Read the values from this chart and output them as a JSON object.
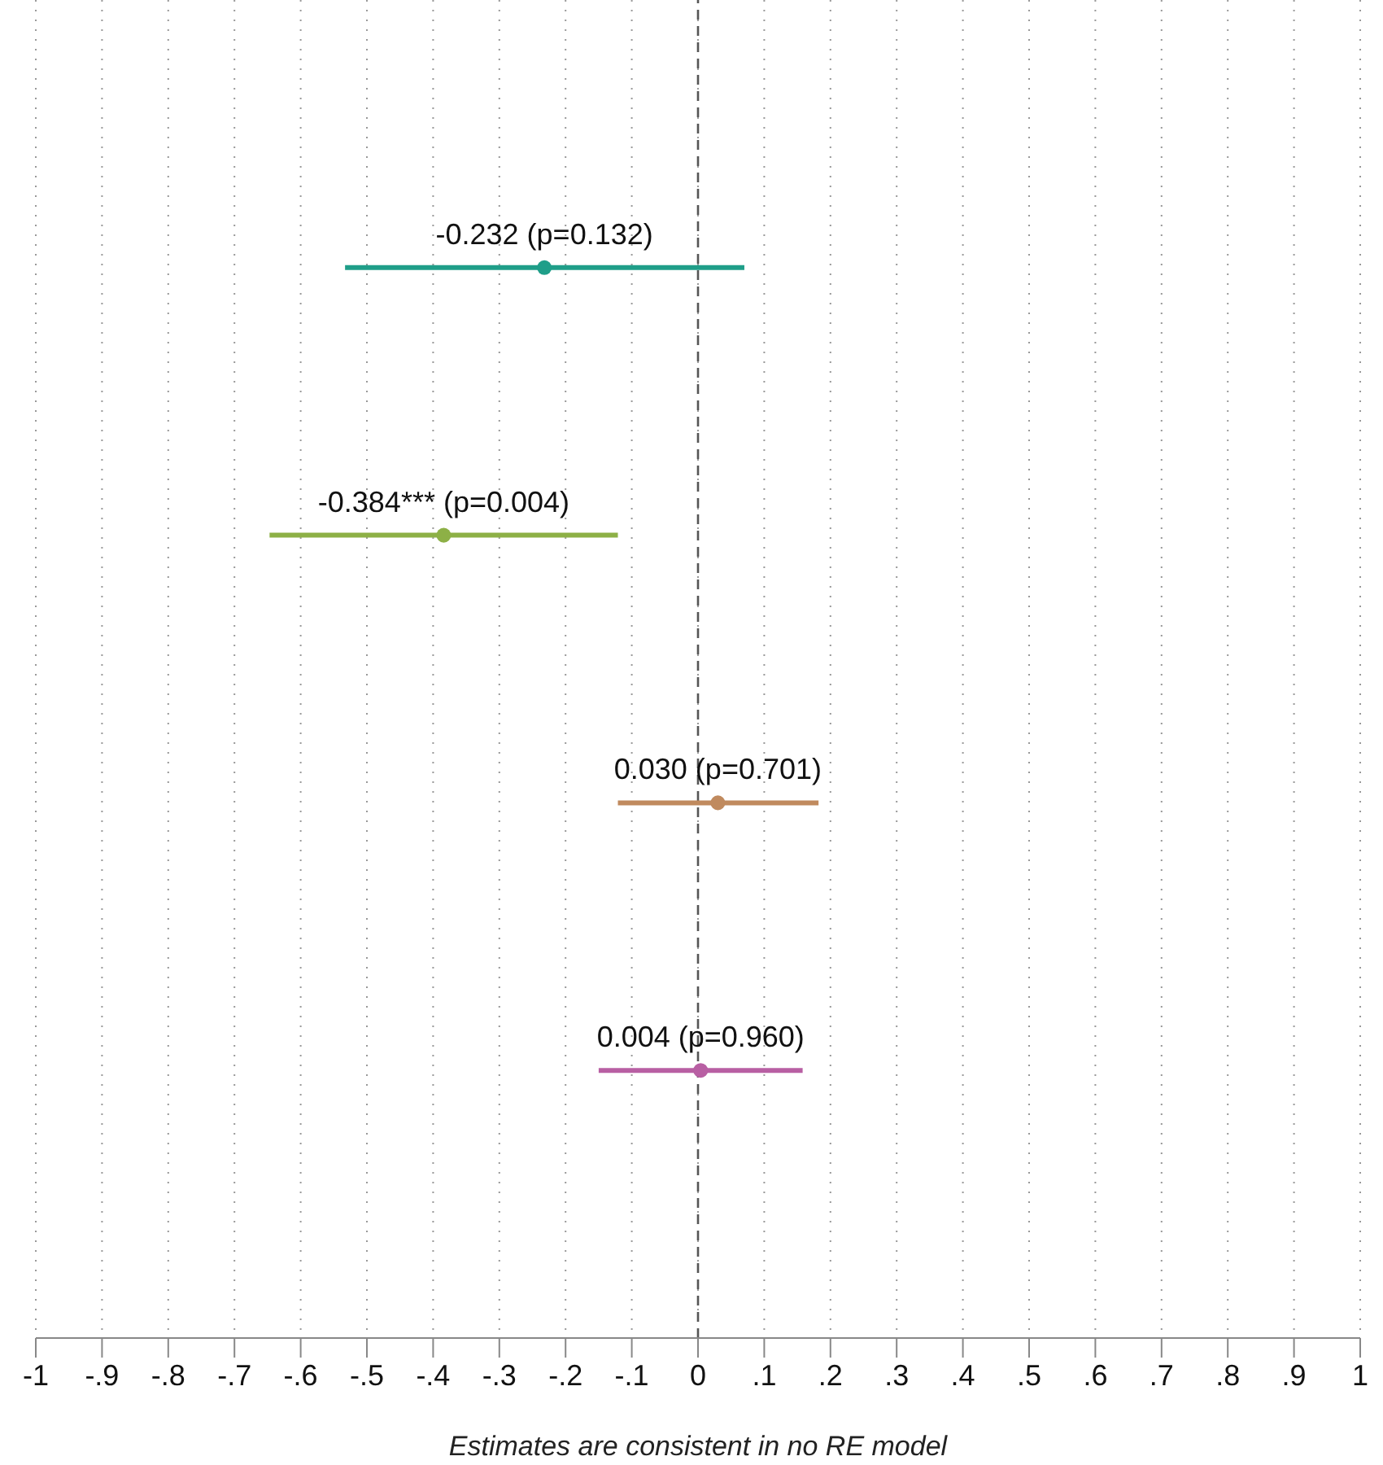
{
  "chart_data": {
    "type": "scatter",
    "orientation": "horizontal",
    "xlabel": "Estimates are consistent in no RE model",
    "categories": [
      null,
      null,
      null,
      null
    ],
    "series": [
      {
        "color": "#1f9e89",
        "values": [
          -0.232,
          null,
          null,
          null
        ],
        "errors": [
          [
            -0.533,
            0.07
          ],
          null,
          null,
          null
        ],
        "value_labels": [
          "-0.232 (p=0.132)",
          null,
          null,
          null
        ]
      },
      {
        "color": "#8db046",
        "values": [
          null,
          -0.384,
          null,
          null
        ],
        "errors": [
          null,
          [
            -0.647,
            -0.121
          ],
          null,
          null
        ],
        "value_labels": [
          null,
          "-0.384*** (p=0.004)",
          null,
          null
        ]
      },
      {
        "color": "#c08a5e",
        "values": [
          null,
          null,
          0.03,
          null
        ],
        "errors": [
          null,
          null,
          [
            -0.121,
            0.182
          ],
          null
        ],
        "value_labels": [
          null,
          null,
          "0.030 (p=0.701)",
          null
        ]
      },
      {
        "color": "#b85fa3",
        "values": [
          null,
          null,
          null,
          0.004
        ],
        "errors": [
          null,
          null,
          null,
          [
            -0.15,
            0.158
          ]
        ],
        "value_labels": [
          null,
          null,
          null,
          "0.004 (p=0.960)"
        ]
      }
    ],
    "xlim": [
      -1,
      1
    ],
    "xticks": [
      -1,
      {
        "value": -0.9,
        "label": "-.9"
      },
      {
        "value": -0.8,
        "label": "-.8"
      },
      {
        "value": -0.7,
        "label": "-.7"
      },
      {
        "value": -0.6,
        "label": "-.6"
      },
      {
        "value": -0.5,
        "label": "-.5"
      },
      {
        "value": -0.4,
        "label": "-.4"
      },
      {
        "value": -0.3,
        "label": "-.3"
      },
      {
        "value": -0.2,
        "label": "-.2"
      },
      {
        "value": -0.1,
        "label": "-.1"
      },
      0,
      {
        "value": 0.1,
        "label": ".1"
      },
      {
        "value": 0.2,
        "label": ".2"
      },
      {
        "value": 0.3,
        "label": ".3"
      },
      {
        "value": 0.4,
        "label": ".4"
      },
      {
        "value": 0.5,
        "label": ".5"
      },
      {
        "value": 0.6,
        "label": ".6"
      },
      {
        "value": 0.7,
        "label": ".7"
      },
      {
        "value": 0.8,
        "label": ".8"
      },
      {
        "value": 0.9,
        "label": ".9"
      },
      1
    ],
    "ref_lines": [
      {
        "axis": "x",
        "value": 0,
        "color": "#555555",
        "line_style": "dashed"
      }
    ],
    "grid": "x",
    "tick_labels": "x",
    "marker": "circle"
  }
}
